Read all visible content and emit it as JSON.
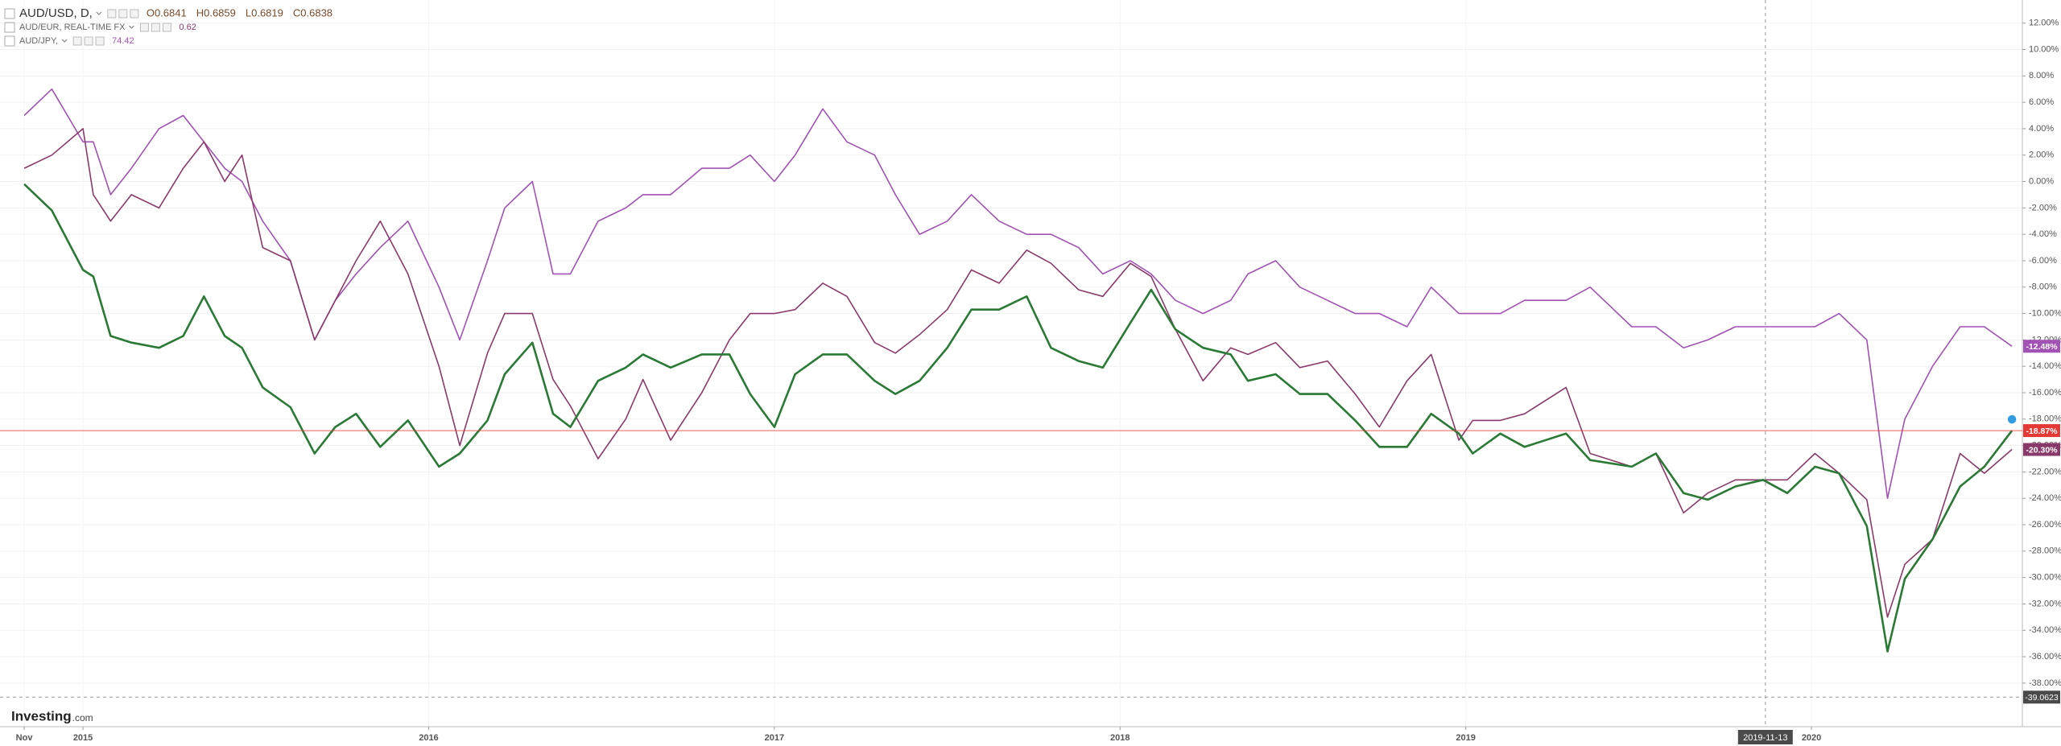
{
  "chart_data": {
    "type": "line",
    "x": [
      2014.83,
      2014.91,
      2015.0,
      2015.03,
      2015.08,
      2015.14,
      2015.22,
      2015.29,
      2015.35,
      2015.41,
      2015.46,
      2015.52,
      2015.6,
      2015.67,
      2015.73,
      2015.79,
      2015.86,
      2015.94,
      2016.03,
      2016.09,
      2016.17,
      2016.22,
      2016.3,
      2016.36,
      2016.41,
      2016.49,
      2016.57,
      2016.62,
      2016.7,
      2016.79,
      2016.87,
      2016.93,
      2017.0,
      2017.06,
      2017.14,
      2017.21,
      2017.29,
      2017.35,
      2017.42,
      2017.5,
      2017.57,
      2017.65,
      2017.73,
      2017.8,
      2017.88,
      2017.95,
      2018.03,
      2018.09,
      2018.16,
      2018.24,
      2018.32,
      2018.37,
      2018.45,
      2018.52,
      2018.6,
      2018.68,
      2018.75,
      2018.83,
      2018.9,
      2018.98,
      2019.02,
      2019.1,
      2019.17,
      2019.29,
      2019.36,
      2019.48,
      2019.55,
      2019.63,
      2019.7,
      2019.78,
      2019.86,
      2019.93,
      2020.01,
      2020.08,
      2020.16,
      2020.22,
      2020.27,
      2020.35,
      2020.43,
      2020.5,
      2020.58
    ],
    "xlim": [
      2014.76,
      2020.61
    ],
    "xticks": [
      {
        "value": 2014.83,
        "label": "Nov"
      },
      2015,
      2016,
      2017,
      2018,
      2019,
      2020
    ],
    "ylim": [
      -41.3,
      13.75
    ],
    "yticks": [
      {
        "value": 12,
        "label": "12.00%"
      },
      {
        "value": 10,
        "label": "10.00%"
      },
      {
        "value": 8,
        "label": "8.00%"
      },
      {
        "value": 6,
        "label": "6.00%"
      },
      {
        "value": 4,
        "label": "4.00%"
      },
      {
        "value": 2,
        "label": "2.00%"
      },
      {
        "value": 0,
        "label": "0.00%"
      },
      {
        "value": -2,
        "label": "-2.00%"
      },
      {
        "value": -4,
        "label": "-4.00%"
      },
      {
        "value": -6,
        "label": "-6.00%"
      },
      {
        "value": -8,
        "label": "-8.00%"
      },
      {
        "value": -10,
        "label": "-10.00%"
      },
      {
        "value": -12,
        "label": "-12.00%"
      },
      {
        "value": -14,
        "label": "-14.00%"
      },
      {
        "value": -16,
        "label": "-16.00%"
      },
      {
        "value": -18,
        "label": "-18.00%"
      },
      {
        "value": -20,
        "label": "-20.00%"
      },
      {
        "value": -22,
        "label": "-22.00%"
      },
      {
        "value": -24,
        "label": "-24.00%"
      },
      {
        "value": -26,
        "label": "-26.00%"
      },
      {
        "value": -28,
        "label": "-28.00%"
      },
      {
        "value": -30,
        "label": "-30.00%"
      },
      {
        "value": -32,
        "label": "-32.00%"
      },
      {
        "value": -34,
        "label": "-34.00%"
      },
      {
        "value": -36,
        "label": "-36.00%"
      },
      {
        "value": -38,
        "label": "-38.00%"
      }
    ],
    "grid": true,
    "series": [
      {
        "name": "AUD/USD, D,",
        "color": "#2a7a36",
        "tag_color": "#e53935",
        "legend_values": [
          "O0.6841",
          "H0.6859",
          "L0.6819",
          "C0.6838"
        ],
        "values": [
          -0.2,
          -2.2,
          -6.7,
          -7.2,
          -11.7,
          -12.2,
          -12.6,
          -11.7,
          -8.7,
          -11.7,
          -12.6,
          -15.6,
          -17.1,
          -20.6,
          -18.6,
          -17.6,
          -20.1,
          -18.1,
          -21.6,
          -20.6,
          -18.1,
          -14.6,
          -12.2,
          -17.6,
          -18.6,
          -15.1,
          -14.1,
          -13.1,
          -14.1,
          -13.1,
          -13.1,
          -16.1,
          -18.6,
          -14.6,
          -13.1,
          -13.1,
          -15.1,
          -16.1,
          -15.1,
          -12.6,
          -9.7,
          -9.7,
          -8.7,
          -12.6,
          -13.6,
          -14.1,
          -10.7,
          -8.2,
          -11.2,
          -12.6,
          -13.1,
          -15.1,
          -14.6,
          -16.1,
          -16.1,
          -18.1,
          -20.1,
          -20.1,
          -17.6,
          -19.1,
          -20.6,
          -19.1,
          -20.1,
          -19.1,
          -21.1,
          -21.6,
          -20.6,
          -23.6,
          -24.1,
          -23.1,
          -22.6,
          -23.6,
          -21.6,
          -22.1,
          -26.1,
          -35.6,
          -30.1,
          -27.1,
          -23.1,
          -21.6,
          -18.87
        ],
        "value_labels": [
          null,
          null,
          null,
          null,
          null,
          null,
          null,
          null,
          null,
          null,
          null,
          null,
          null,
          null,
          null,
          null,
          null,
          null,
          null,
          null,
          null,
          null,
          null,
          null,
          null,
          null,
          null,
          null,
          null,
          null,
          null,
          null,
          null,
          null,
          null,
          null,
          null,
          null,
          null,
          null,
          null,
          null,
          null,
          null,
          null,
          null,
          null,
          null,
          null,
          null,
          null,
          null,
          null,
          null,
          null,
          null,
          null,
          null,
          null,
          null,
          null,
          null,
          null,
          null,
          null,
          null,
          null,
          null,
          null,
          null,
          null,
          null,
          null,
          null,
          null,
          null,
          null,
          null,
          null,
          null,
          "-18.87%"
        ]
      },
      {
        "name": "AUD/EUR, REAL-TIME FX",
        "color": "#8a3a6a",
        "legend_values": [
          "0.62"
        ],
        "values": [
          1,
          2,
          4,
          -1,
          -3,
          -1,
          -2,
          1,
          3,
          0,
          2,
          -5,
          -6,
          -12,
          -9,
          -6,
          -3,
          -7,
          -14,
          -20,
          -13,
          -10,
          -10,
          -15,
          -17,
          -21,
          -18,
          -15,
          -19.6,
          -16,
          -12,
          -10,
          -10,
          -9.7,
          -7.7,
          -8.7,
          -12.2,
          -13,
          -11.6,
          -9.7,
          -6.7,
          -7.7,
          -5.2,
          -6.2,
          -8.2,
          -8.7,
          -6.2,
          -7.2,
          -11.2,
          -15.1,
          -12.6,
          -13.1,
          -12.2,
          -14.1,
          -13.6,
          -16.1,
          -18.6,
          -15.1,
          -13.1,
          -19.6,
          -18.1,
          -18.1,
          -17.6,
          -15.6,
          -20.6,
          -21.6,
          -20.6,
          -25.1,
          -23.6,
          -22.6,
          -22.6,
          -22.6,
          -20.6,
          -22.1,
          -24.1,
          -33,
          -29,
          -27.1,
          -20.6,
          -22.1,
          -20.3
        ],
        "value_labels": [
          null,
          null,
          null,
          null,
          null,
          null,
          null,
          null,
          null,
          null,
          null,
          null,
          null,
          null,
          null,
          null,
          null,
          null,
          null,
          null,
          null,
          null,
          null,
          null,
          null,
          null,
          null,
          null,
          null,
          null,
          null,
          null,
          null,
          null,
          null,
          null,
          null,
          null,
          null,
          null,
          null,
          null,
          null,
          null,
          null,
          null,
          null,
          null,
          null,
          null,
          null,
          null,
          null,
          null,
          null,
          null,
          null,
          null,
          null,
          null,
          null,
          null,
          null,
          null,
          null,
          null,
          null,
          null,
          null,
          null,
          null,
          null,
          null,
          null,
          null,
          null,
          null,
          null,
          null,
          null,
          "-20.30%"
        ]
      },
      {
        "name": "AUD/JPY,",
        "color": "#a152b4",
        "legend_values": [
          "74.42"
        ],
        "values": [
          5,
          7,
          3,
          3,
          -1,
          1,
          4,
          5,
          3,
          1,
          0,
          -3,
          -6,
          -12,
          -9,
          -7,
          -5,
          -3,
          -8,
          -12,
          -6,
          -2,
          0,
          -7,
          -7,
          -3,
          -2,
          -1,
          -1,
          1,
          1,
          2,
          0,
          2,
          5.5,
          3,
          2,
          -1,
          -4,
          -3,
          -1,
          -3,
          -4,
          -4,
          -5,
          -7,
          -6,
          -7,
          -9,
          -10,
          -9,
          -7,
          -6,
          -8,
          -9,
          -10,
          -10,
          -11,
          -8,
          -10,
          -10,
          -10,
          -9,
          -9,
          -8,
          -11,
          -11,
          -12.6,
          -12,
          -11,
          -11,
          -11,
          -11,
          -10,
          -12,
          -24,
          -18,
          -14,
          -11,
          -11,
          -12.48
        ],
        "value_labels": [
          null,
          null,
          null,
          null,
          null,
          null,
          null,
          null,
          null,
          null,
          null,
          null,
          null,
          null,
          null,
          null,
          null,
          null,
          null,
          null,
          null,
          null,
          null,
          null,
          null,
          null,
          null,
          null,
          null,
          null,
          null,
          null,
          null,
          null,
          null,
          null,
          null,
          null,
          null,
          null,
          null,
          null,
          null,
          null,
          null,
          null,
          null,
          null,
          null,
          null,
          null,
          null,
          null,
          null,
          null,
          null,
          null,
          null,
          null,
          null,
          null,
          null,
          null,
          null,
          null,
          null,
          null,
          null,
          null,
          null,
          null,
          null,
          null,
          null,
          null,
          null,
          null,
          null,
          null,
          null,
          "-12.48%"
        ]
      }
    ],
    "crosshair": {
      "x": "2019-11-13",
      "y": -39.0623
    },
    "watermark": [
      "Investing",
      ".com"
    ]
  }
}
